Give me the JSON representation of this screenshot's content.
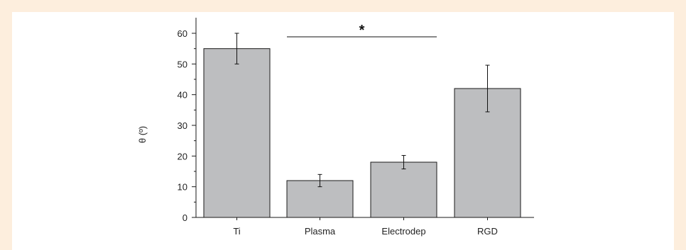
{
  "chart_data": {
    "type": "bar",
    "categories": [
      "Ti",
      "Plasma",
      "Electrodep",
      "RGD"
    ],
    "values": [
      55,
      12,
      18,
      42
    ],
    "errors": [
      5,
      2,
      2.2,
      7.6
    ],
    "xlabel": "",
    "ylabel": "θ (º)",
    "ylim": [
      0,
      65
    ],
    "yticks": [
      0,
      10,
      20,
      30,
      40,
      50,
      60
    ],
    "grid": false,
    "significance": {
      "from": "Plasma",
      "to": "Electrodep",
      "label": "*"
    },
    "colors": {
      "bar_fill": "#bdbec0",
      "bar_stroke": "#1a1a1a",
      "axis": "#1a1a1a"
    }
  }
}
